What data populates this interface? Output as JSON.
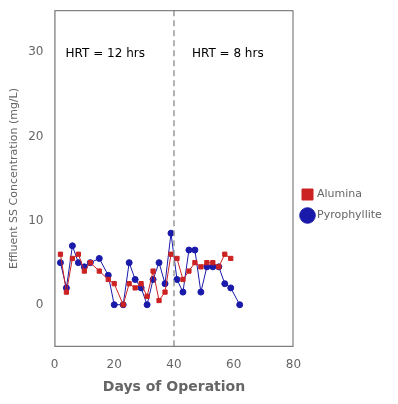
{
  "chart_data": {
    "type": "line",
    "xlabel": "Days of Operation",
    "ylabel": "Effluent SS Concentration (mg/L)",
    "series": [
      {
        "name": "Alumina",
        "color": "#cc2222",
        "marker": "square",
        "x": [
          2,
          4,
          6,
          8,
          10,
          12,
          15,
          18,
          20,
          23,
          25,
          27,
          29,
          31,
          33,
          35,
          37,
          39,
          41,
          43,
          45,
          47,
          49,
          51,
          53,
          55,
          57,
          59
        ],
        "values": [
          6,
          1.5,
          5.5,
          6,
          4,
          5,
          4,
          3,
          2.5,
          0,
          2.5,
          2,
          2.5,
          1,
          4,
          0.5,
          1.5,
          6,
          5.5,
          3,
          4,
          5,
          4.5,
          5,
          5,
          4.5,
          6,
          5.5
        ]
      },
      {
        "name": "Pyrophyllite",
        "color": "#1a1aaa",
        "marker": "circle",
        "x": [
          2,
          4,
          6,
          8,
          10,
          12,
          15,
          18,
          20,
          23,
          25,
          27,
          29,
          31,
          33,
          35,
          37,
          39,
          41,
          43,
          45,
          47,
          49,
          51,
          53,
          55,
          57,
          59,
          62
        ],
        "values": [
          5,
          2,
          7,
          5,
          4.5,
          5,
          5.5,
          3.5,
          0,
          0,
          5,
          3,
          2,
          0,
          3,
          5,
          2.5,
          8.5,
          3,
          1.5,
          6.5,
          6.5,
          1.5,
          4.5,
          4.5,
          4.5,
          2.5,
          2,
          0
        ]
      }
    ],
    "xlim": [
      0,
      80
    ],
    "xticks": [
      0,
      20,
      40,
      60,
      80
    ],
    "ylim": [
      -5,
      35
    ],
    "yticks": [
      0,
      10,
      20,
      30
    ],
    "grid": false,
    "legend": "right",
    "annotations": [
      {
        "type": "vline",
        "x": 40,
        "color": "#999999",
        "line_style": "dashed"
      },
      {
        "type": "text",
        "text": "HRT = 12 hrs",
        "x": 17,
        "y": 30.5
      },
      {
        "type": "text",
        "text": "HRT = 8 hrs",
        "x": 58,
        "y": 30.5
      }
    ]
  }
}
